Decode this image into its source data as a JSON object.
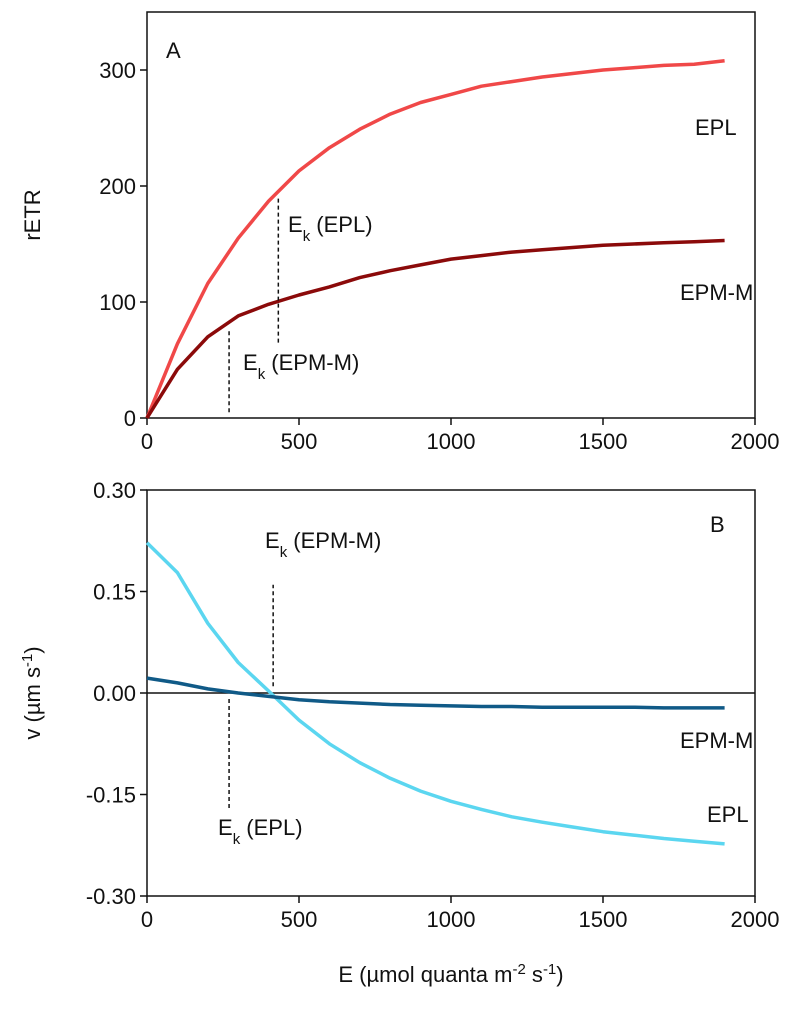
{
  "chart_data": [
    {
      "type": "line",
      "panel_label": "A",
      "ylabel": "rETR",
      "x": [
        0,
        100,
        200,
        300,
        400,
        500,
        600,
        700,
        800,
        900,
        1000,
        1100,
        1200,
        1300,
        1400,
        1500,
        1600,
        1700,
        1800,
        1900
      ],
      "series": [
        {
          "name": "EPL",
          "color": "#f04848",
          "values": [
            0,
            64,
            116,
            155,
            187,
            213,
            233,
            249,
            262,
            272,
            279,
            286,
            290,
            294,
            297,
            300,
            302,
            304,
            305,
            308
          ]
        },
        {
          "name": "EPM-M",
          "color": "#8b0a0a",
          "values": [
            0,
            42,
            70,
            88,
            98,
            106,
            113,
            121,
            127,
            132,
            137,
            140,
            143,
            145,
            147,
            149,
            150,
            151,
            152,
            153
          ]
        }
      ],
      "annotations": [
        {
          "text": [
            "E",
            "k",
            " (EPL)"
          ],
          "x": 432,
          "y": [
            65,
            190
          ]
        },
        {
          "text": [
            "E",
            "k",
            " (EPM-M)"
          ],
          "x": 270,
          "y": [
            5,
            76
          ]
        }
      ],
      "xlim": [
        0,
        2000
      ],
      "xticks": [
        0,
        500,
        1000,
        1500,
        2000
      ],
      "ylim": [
        0,
        350
      ],
      "yticks": [
        0,
        100,
        200,
        300
      ]
    },
    {
      "type": "line",
      "panel_label": "B",
      "ylabel": [
        "v (µm s",
        "-1",
        ")"
      ],
      "xlabel": [
        "E (µmol quanta m",
        "-2",
        " s",
        "-1",
        ")"
      ],
      "x": [
        0,
        100,
        200,
        300,
        400,
        500,
        600,
        700,
        800,
        900,
        1000,
        1100,
        1200,
        1300,
        1400,
        1500,
        1600,
        1700,
        1800,
        1900
      ],
      "series": [
        {
          "name": "EPL",
          "color": "#5bd6f0",
          "values": [
            0.222,
            0.178,
            0.103,
            0.045,
            0.003,
            -0.04,
            -0.075,
            -0.103,
            -0.126,
            -0.145,
            -0.16,
            -0.172,
            -0.183,
            -0.191,
            -0.198,
            -0.205,
            -0.21,
            -0.215,
            -0.219,
            -0.223
          ]
        },
        {
          "name": "EPM-M",
          "color": "#105a87",
          "values": [
            0.022,
            0.015,
            0.006,
            0.0,
            -0.005,
            -0.01,
            -0.013,
            -0.015,
            -0.017,
            -0.018,
            -0.019,
            -0.02,
            -0.02,
            -0.021,
            -0.021,
            -0.021,
            -0.021,
            -0.022,
            -0.022,
            -0.022
          ]
        }
      ],
      "annotations": [
        {
          "text": [
            "E",
            "k",
            " (EPM-M)"
          ],
          "x": 415,
          "y": [
            0.01,
            0.16
          ]
        },
        {
          "text": [
            "E",
            "k",
            " (EPL)"
          ],
          "x": 270,
          "y": [
            -0.17,
            -0.005
          ]
        }
      ],
      "hline": 0,
      "xlim": [
        0,
        2000
      ],
      "xticks": [
        0,
        500,
        1000,
        1500,
        2000
      ],
      "ylim": [
        -0.3,
        0.3
      ],
      "yticks": [
        {
          "value": -0.3,
          "label": "-0.30"
        },
        {
          "value": -0.15,
          "label": "-0.15"
        },
        {
          "value": 0,
          "label": "0.00"
        },
        {
          "value": 0.15,
          "label": "0.15"
        },
        {
          "value": 0.3,
          "label": "0.30"
        }
      ]
    }
  ]
}
